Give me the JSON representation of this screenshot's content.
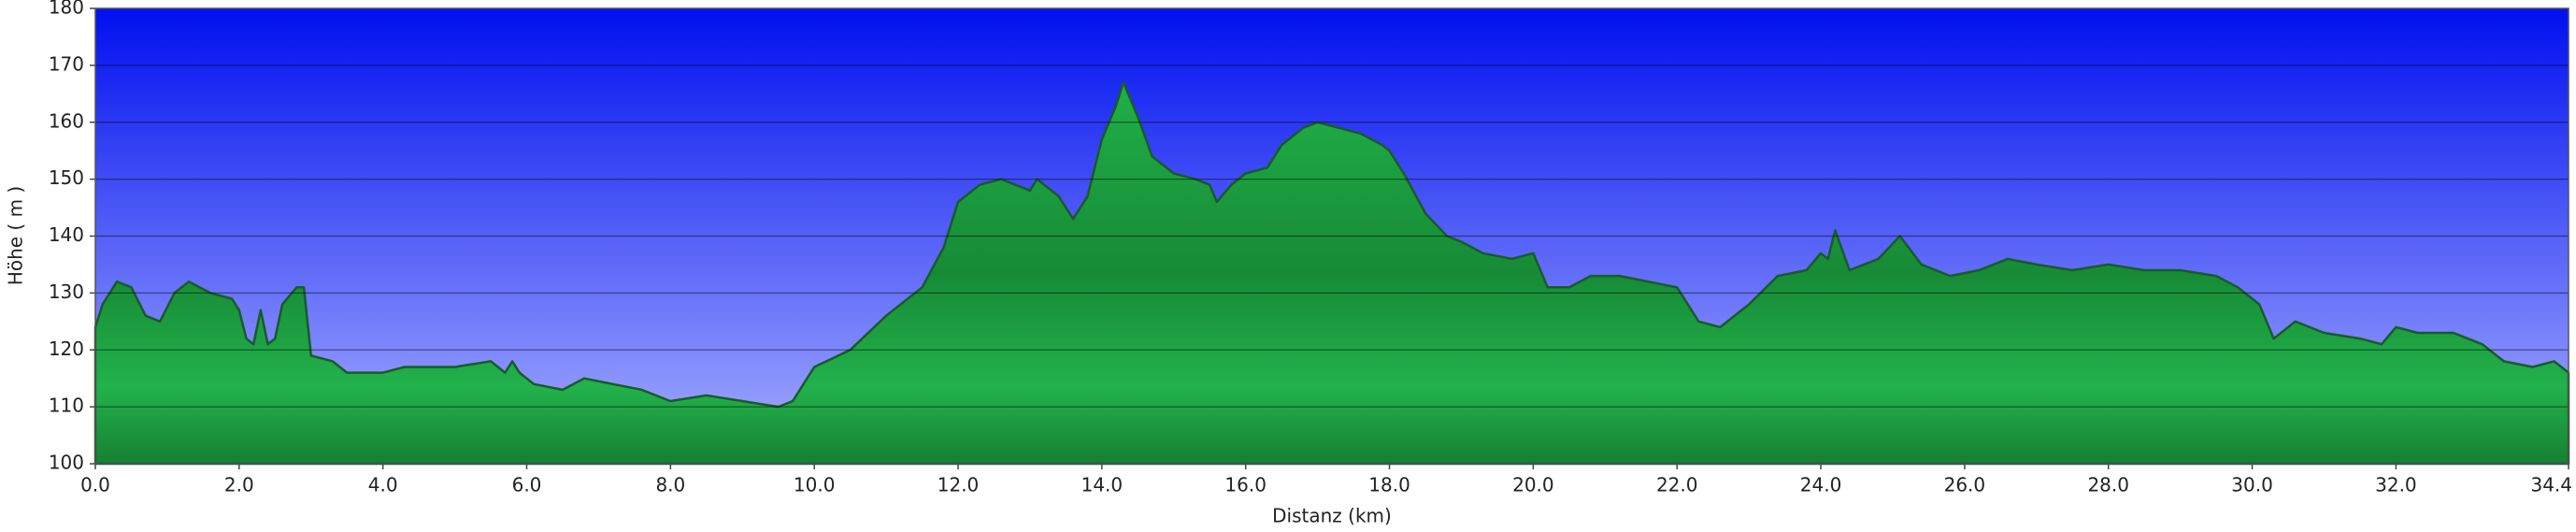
{
  "chart_data": {
    "type": "area",
    "xlabel": "Distanz   (km)",
    "ylabel": "Höhe ( m )",
    "x": [
      0,
      0.1,
      0.3,
      0.5,
      0.7,
      0.9,
      1.1,
      1.3,
      1.6,
      1.9,
      2.0,
      2.1,
      2.2,
      2.3,
      2.4,
      2.5,
      2.6,
      2.8,
      2.9,
      3.0,
      3.3,
      3.5,
      4.0,
      4.3,
      5.0,
      5.5,
      5.7,
      5.8,
      5.9,
      6.1,
      6.5,
      6.8,
      7.2,
      7.6,
      8.0,
      8.5,
      9.0,
      9.5,
      9.7,
      10.0,
      10.5,
      11.0,
      11.5,
      11.8,
      12.0,
      12.3,
      12.6,
      13.0,
      13.1,
      13.4,
      13.6,
      13.8,
      14.0,
      14.2,
      14.3,
      14.5,
      14.7,
      15.0,
      15.3,
      15.5,
      15.6,
      15.8,
      16.0,
      16.3,
      16.5,
      16.8,
      17.0,
      17.3,
      17.6,
      17.9,
      18.0,
      18.2,
      18.5,
      18.8,
      19.0,
      19.3,
      19.7,
      20.0,
      20.2,
      20.5,
      20.8,
      21.2,
      21.6,
      22.0,
      22.3,
      22.6,
      23.0,
      23.4,
      23.8,
      24.0,
      24.1,
      24.2,
      24.4,
      24.8,
      25.1,
      25.4,
      25.8,
      26.2,
      26.6,
      27.0,
      27.5,
      28.0,
      28.5,
      29.0,
      29.5,
      29.8,
      30.1,
      30.3,
      30.6,
      31.0,
      31.5,
      31.8,
      32.0,
      32.3,
      32.8,
      33.2,
      33.5,
      33.9,
      34.2,
      34.4
    ],
    "values": [
      124,
      128,
      132,
      131,
      126,
      125,
      130,
      132,
      130,
      129,
      127,
      122,
      121,
      127,
      121,
      122,
      128,
      131,
      131,
      119,
      118,
      116,
      116,
      117,
      117,
      118,
      116,
      118,
      116,
      114,
      113,
      115,
      114,
      113,
      111,
      112,
      111,
      110,
      111,
      117,
      120,
      126,
      131,
      138,
      146,
      149,
      150,
      148,
      150,
      147,
      143,
      147,
      157,
      163,
      167,
      161,
      154,
      151,
      150,
      149,
      146,
      149,
      151,
      152,
      156,
      159,
      160,
      159,
      158,
      156,
      155,
      151,
      144,
      140,
      139,
      137,
      136,
      137,
      131,
      131,
      133,
      133,
      132,
      131,
      125,
      124,
      128,
      133,
      134,
      137,
      136,
      141,
      134,
      136,
      140,
      135,
      133,
      134,
      136,
      135,
      134,
      135,
      134,
      134,
      133,
      131,
      128,
      122,
      125,
      123,
      122,
      121,
      124,
      123,
      123,
      121,
      118,
      117,
      118,
      116
    ],
    "color": "#22aa44",
    "xlim": [
      0,
      34.4
    ],
    "xticks": [
      {
        "value": 0,
        "label": "0.0"
      },
      {
        "value": 2,
        "label": "2.0"
      },
      {
        "value": 4,
        "label": "4.0"
      },
      {
        "value": 6,
        "label": "6.0"
      },
      {
        "value": 8,
        "label": "8.0"
      },
      {
        "value": 10,
        "label": "10.0"
      },
      {
        "value": 12,
        "label": "12.0"
      },
      {
        "value": 14,
        "label": "14.0"
      },
      {
        "value": 16,
        "label": "16.0"
      },
      {
        "value": 18,
        "label": "18.0"
      },
      {
        "value": 20,
        "label": "20.0"
      },
      {
        "value": 22,
        "label": "22.0"
      },
      {
        "value": 24,
        "label": "24.0"
      },
      {
        "value": 26,
        "label": "26.0"
      },
      {
        "value": 28,
        "label": "28.0"
      },
      {
        "value": 30,
        "label": "30.0"
      },
      {
        "value": 32,
        "label": "32.0"
      },
      34.4
    ],
    "ylim": [
      100,
      180
    ],
    "yticks": [
      100,
      110,
      120,
      130,
      140,
      150,
      160,
      170,
      180
    ],
    "grid": true
  }
}
